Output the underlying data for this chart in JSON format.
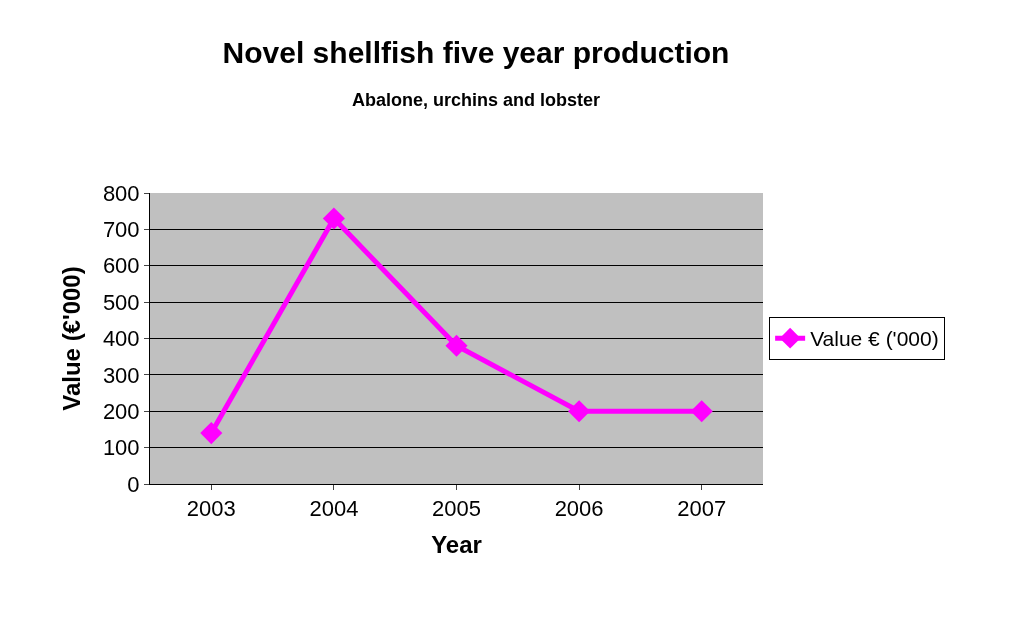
{
  "chart_data": {
    "type": "line",
    "title": "Novel shellfish five year production",
    "subtitle": "Abalone, urchins and lobster",
    "xlabel": "Year",
    "ylabel": "Value (€'000)",
    "categories": [
      "2003",
      "2004",
      "2005",
      "2006",
      "2007"
    ],
    "series": [
      {
        "name": "Value € ('000)",
        "color": "#ff00ff",
        "values": [
          140,
          730,
          380,
          200,
          200
        ]
      }
    ],
    "ylim": [
      0,
      800
    ],
    "yticks": [
      0,
      100,
      200,
      300,
      400,
      500,
      600,
      700,
      800
    ],
    "grid": "y",
    "legend": "right",
    "marker": "diamond",
    "line_style": "solid"
  }
}
